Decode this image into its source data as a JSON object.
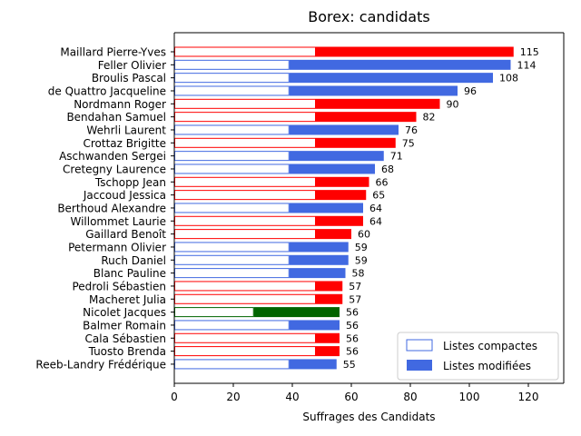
{
  "chart_data": {
    "type": "bar",
    "orientation": "horizontal",
    "title": "Borex: candidats",
    "xlabel": "Suffrages des Candidats",
    "ylabel": "",
    "xlim": [
      0,
      132
    ],
    "xticks": [
      0,
      20,
      40,
      60,
      80,
      100,
      120
    ],
    "grid": false,
    "legend": {
      "placement": "bottom-right",
      "entries": [
        {
          "label": "Listes compactes",
          "style": "outline",
          "color": "#4169e1"
        },
        {
          "label": "Listes modifiées",
          "style": "filled",
          "color": "#4169e1"
        }
      ]
    },
    "candidates": [
      {
        "name": "Maillard Pierre-Yves",
        "total": 115,
        "compact": 48,
        "color": "#ff0000"
      },
      {
        "name": "Feller Olivier",
        "total": 114,
        "compact": 39,
        "color": "#4169e1"
      },
      {
        "name": "Broulis Pascal",
        "total": 108,
        "compact": 39,
        "color": "#4169e1"
      },
      {
        "name": "de Quattro Jacqueline",
        "total": 96,
        "compact": 39,
        "color": "#4169e1"
      },
      {
        "name": "Nordmann Roger",
        "total": 90,
        "compact": 48,
        "color": "#ff0000"
      },
      {
        "name": "Bendahan Samuel",
        "total": 82,
        "compact": 48,
        "color": "#ff0000"
      },
      {
        "name": "Wehrli Laurent",
        "total": 76,
        "compact": 39,
        "color": "#4169e1"
      },
      {
        "name": "Crottaz Brigitte",
        "total": 75,
        "compact": 48,
        "color": "#ff0000"
      },
      {
        "name": "Aschwanden Sergei",
        "total": 71,
        "compact": 39,
        "color": "#4169e1"
      },
      {
        "name": "Cretegny Laurence",
        "total": 68,
        "compact": 39,
        "color": "#4169e1"
      },
      {
        "name": "Tschopp Jean",
        "total": 66,
        "compact": 48,
        "color": "#ff0000"
      },
      {
        "name": "Jaccoud Jessica",
        "total": 65,
        "compact": 48,
        "color": "#ff0000"
      },
      {
        "name": "Berthoud Alexandre",
        "total": 64,
        "compact": 39,
        "color": "#4169e1"
      },
      {
        "name": "Willommet Laurie",
        "total": 64,
        "compact": 48,
        "color": "#ff0000"
      },
      {
        "name": "Gaillard Benoît",
        "total": 60,
        "compact": 48,
        "color": "#ff0000"
      },
      {
        "name": "Petermann Olivier",
        "total": 59,
        "compact": 39,
        "color": "#4169e1"
      },
      {
        "name": "Ruch Daniel",
        "total": 59,
        "compact": 39,
        "color": "#4169e1"
      },
      {
        "name": "Blanc Pauline",
        "total": 58,
        "compact": 39,
        "color": "#4169e1"
      },
      {
        "name": "Pedroli Sébastien",
        "total": 57,
        "compact": 48,
        "color": "#ff0000"
      },
      {
        "name": "Macheret Julia",
        "total": 57,
        "compact": 48,
        "color": "#ff0000"
      },
      {
        "name": "Nicolet Jacques",
        "total": 56,
        "compact": 27,
        "color": "#006400"
      },
      {
        "name": "Balmer Romain",
        "total": 56,
        "compact": 39,
        "color": "#4169e1"
      },
      {
        "name": "Cala Sébastien",
        "total": 56,
        "compact": 48,
        "color": "#ff0000"
      },
      {
        "name": "Tuosto Brenda",
        "total": 56,
        "compact": 48,
        "color": "#ff0000"
      },
      {
        "name": "Reeb-Landry Frédérique",
        "total": 55,
        "compact": 39,
        "color": "#4169e1"
      }
    ]
  }
}
